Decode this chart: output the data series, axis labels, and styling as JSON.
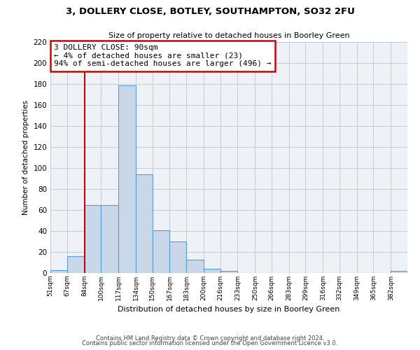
{
  "title": "3, DOLLERY CLOSE, BOTLEY, SOUTHAMPTON, SO32 2FU",
  "subtitle": "Size of property relative to detached houses in Boorley Green",
  "xlabel": "Distribution of detached houses by size in Boorley Green",
  "ylabel": "Number of detached properties",
  "bar_values": [
    3,
    16,
    65,
    65,
    179,
    94,
    41,
    30,
    13,
    4,
    2,
    0,
    0,
    0,
    0,
    0,
    0,
    0,
    0,
    0,
    2
  ],
  "bin_labels": [
    "51sqm",
    "67sqm",
    "84sqm",
    "100sqm",
    "117sqm",
    "134sqm",
    "150sqm",
    "167sqm",
    "183sqm",
    "200sqm",
    "216sqm",
    "233sqm",
    "250sqm",
    "266sqm",
    "283sqm",
    "299sqm",
    "316sqm",
    "332sqm",
    "349sqm",
    "365sqm",
    "382sqm"
  ],
  "bin_edges": [
    51,
    67,
    84,
    100,
    117,
    134,
    150,
    167,
    183,
    200,
    216,
    233,
    250,
    266,
    283,
    299,
    316,
    332,
    349,
    365,
    382,
    398
  ],
  "bar_color": "#c8d8e8",
  "bar_edge_color": "#5b9bd5",
  "vline_x": 84,
  "vline_color": "#cc0000",
  "ylim": [
    0,
    220
  ],
  "yticks": [
    0,
    20,
    40,
    60,
    80,
    100,
    120,
    140,
    160,
    180,
    200,
    220
  ],
  "annotation_box_text": [
    "3 DOLLERY CLOSE: 90sqm",
    "← 4% of detached houses are smaller (23)",
    "94% of semi-detached houses are larger (496) →"
  ],
  "annotation_box_color": "#cc0000",
  "background_color": "#eef2f7",
  "footer_line1": "Contains HM Land Registry data © Crown copyright and database right 2024.",
  "footer_line2": "Contains public sector information licensed under the Open Government Licence v3.0.",
  "grid_color": "#c0ccda"
}
